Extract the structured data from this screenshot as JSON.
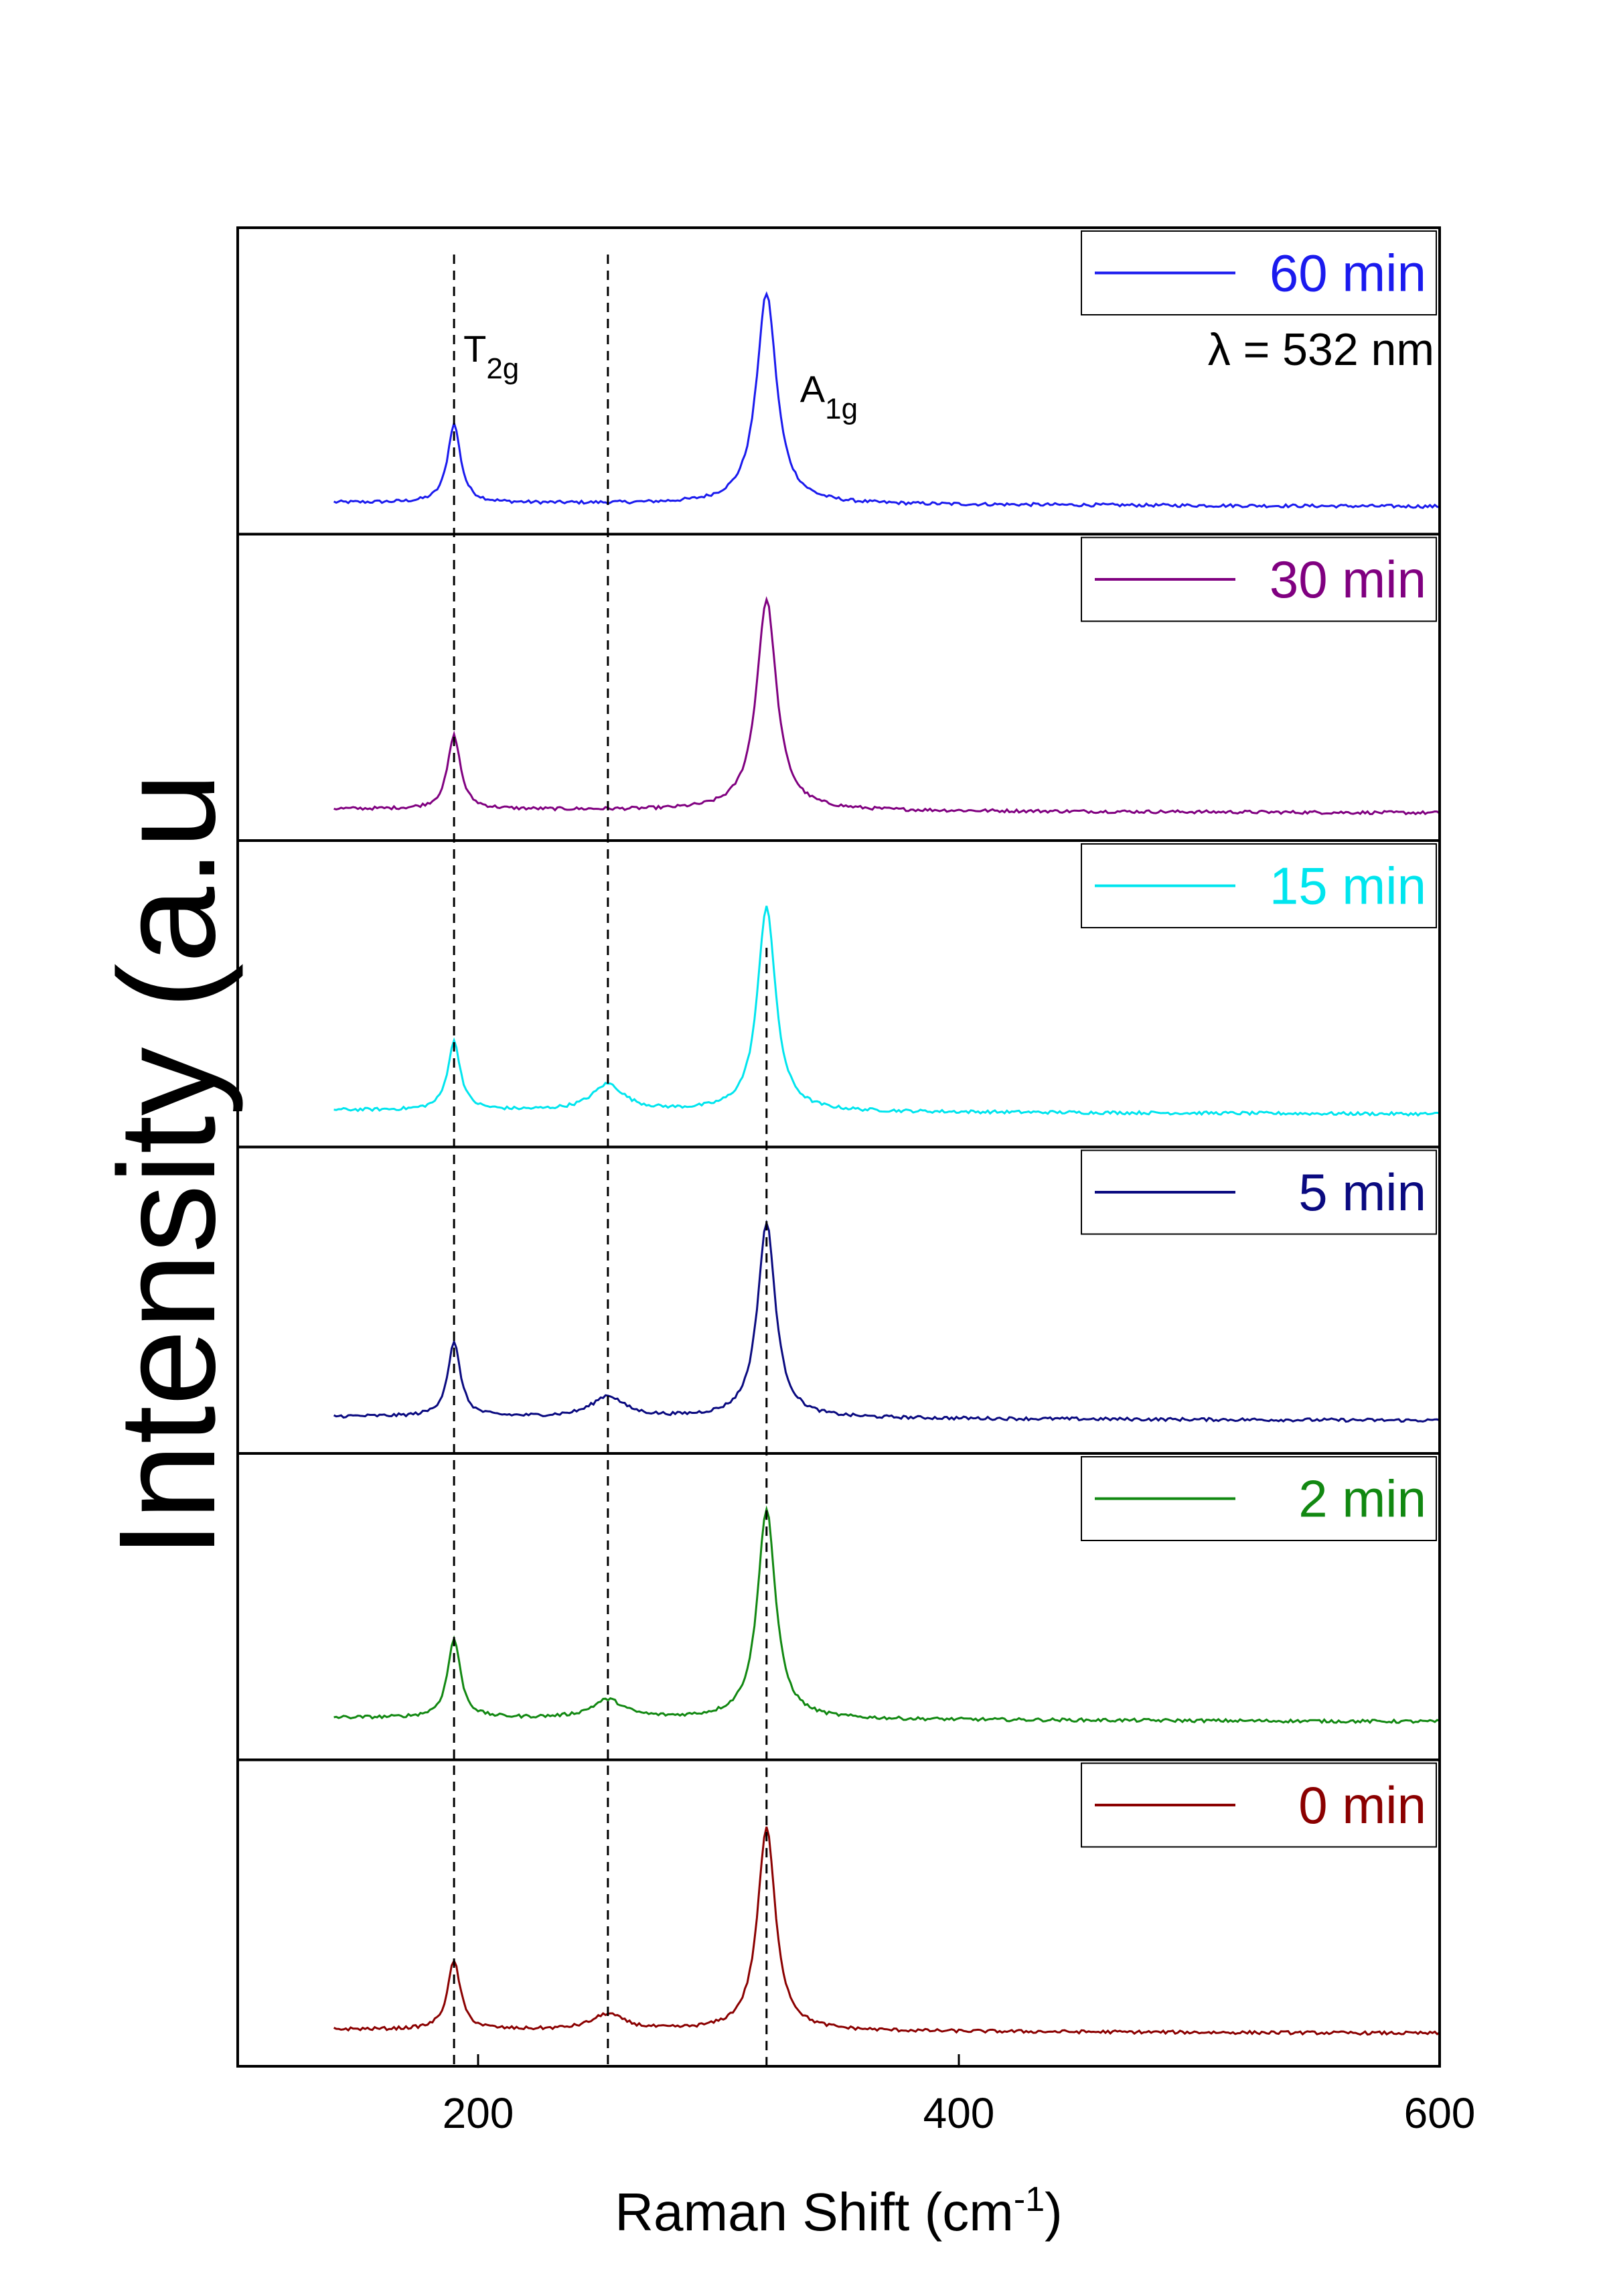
{
  "chart_data": {
    "type": "line",
    "title": "",
    "xlabel": "Raman Shift (cm",
    "xlabel_sup": "-1",
    "xlabel_close": ")",
    "ylabel": "Intensity (a.u",
    "xlim": [
      100,
      600
    ],
    "xticks": [
      200,
      400,
      600
    ],
    "grid": false,
    "layout": "stacked-panels",
    "annotation_excitation": "λ = 532 nm",
    "peak_labels": [
      {
        "base": "T",
        "sub": "2g",
        "x": 190
      },
      {
        "base": "A",
        "sub": "1g",
        "x": 320
      }
    ],
    "reference_lines_x": [
      190,
      254,
      320
    ],
    "series": [
      {
        "name": "60 min",
        "color": "#1a1aee",
        "baseline": 0.12,
        "peaks": [
          [
            190,
            0.3,
            3.2
          ],
          [
            320,
            0.8,
            5.0
          ]
        ]
      },
      {
        "name": "30 min",
        "color": "#800080",
        "baseline": 0.12,
        "peaks": [
          [
            190,
            0.28,
            3.2
          ],
          [
            320,
            0.8,
            5.0
          ]
        ]
      },
      {
        "name": "15 min",
        "color": "#00e5ee",
        "baseline": 0.14,
        "peaks": [
          [
            190,
            0.26,
            3.2
          ],
          [
            254,
            0.1,
            8.0
          ],
          [
            320,
            0.78,
            4.5
          ]
        ]
      },
      {
        "name": "5 min",
        "color": "#0a0a80",
        "baseline": 0.14,
        "peaks": [
          [
            190,
            0.28,
            3.2
          ],
          [
            254,
            0.08,
            8.0
          ],
          [
            320,
            0.74,
            4.5
          ]
        ]
      },
      {
        "name": "2 min",
        "color": "#118811",
        "baseline": 0.16,
        "peaks": [
          [
            190,
            0.3,
            3.2
          ],
          [
            254,
            0.07,
            8.0
          ],
          [
            320,
            0.8,
            4.5
          ]
        ]
      },
      {
        "name": "0 min",
        "color": "#8b0000",
        "baseline": 0.14,
        "peaks": [
          [
            190,
            0.26,
            3.2
          ],
          [
            254,
            0.06,
            8.0
          ],
          [
            320,
            0.77,
            4.5
          ]
        ]
      }
    ]
  }
}
